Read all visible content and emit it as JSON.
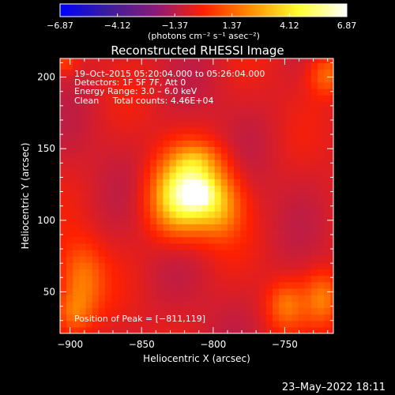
{
  "chart_data": {
    "type": "heatmap",
    "title": "Reconstructed RHESSI Image",
    "xlabel": "Heliocentric X (arcsec)",
    "ylabel": "Heliocentric Y (arcsec)",
    "xlim": [
      -907,
      -716
    ],
    "ylim": [
      21,
      213
    ],
    "x_ticks": [
      -900,
      -850,
      -800,
      -750
    ],
    "x_tick_labels": [
      "−900",
      "−850",
      "−800",
      "−750"
    ],
    "y_ticks": [
      50,
      100,
      150,
      200
    ],
    "y_tick_labels": [
      "50",
      "100",
      "150",
      "200"
    ],
    "colorbar": {
      "range": [
        -6.87,
        6.87
      ],
      "tick_values": [
        -6.87,
        -4.12,
        -1.37,
        1.37,
        4.12,
        6.87
      ],
      "tick_labels": [
        "−6.87",
        "−4.12",
        "−1.37",
        "1.37",
        "4.12",
        "6.87"
      ],
      "units": "(photons cm⁻² s⁻¹ asec⁻²)"
    },
    "annotations": [
      "19–Oct–2015 05:20:04.000 to 05:26:04.000",
      "Detectors: 1F 5F 7F, Att 0",
      "Energy Range: 3.0 – 6.0 keV",
      "Clean     Total counts: 4.46E+04"
    ],
    "peak_label": "Position of Peak = [−811,119]",
    "peak": {
      "x": -811,
      "y": 119,
      "value": 6.87
    },
    "blobs": [
      {
        "x": -811,
        "y": 119,
        "sx": 5,
        "sy": 5,
        "amp": 2.5
      },
      {
        "x": -814,
        "y": 122,
        "sx": 16,
        "sy": 18,
        "amp": 3.2
      },
      {
        "x": -827,
        "y": 111,
        "sx": 13,
        "sy": 17,
        "amp": 1.3
      },
      {
        "x": -795,
        "y": 108,
        "sx": 11,
        "sy": 15,
        "amp": 1.2
      },
      {
        "x": -812,
        "y": 144,
        "sx": 11,
        "sy": 7,
        "amp": 0.6
      },
      {
        "x": -892,
        "y": 58,
        "sx": 11,
        "sy": 18,
        "amp": 1.5
      },
      {
        "x": -899,
        "y": 35,
        "sx": 9,
        "sy": 10,
        "amp": 1.1
      },
      {
        "x": -749,
        "y": 41,
        "sx": 9,
        "sy": 11,
        "amp": 1.2
      },
      {
        "x": -723,
        "y": 45,
        "sx": 9,
        "sy": 13,
        "amp": 1.5
      },
      {
        "x": -720,
        "y": 202,
        "sx": 9,
        "sy": 10,
        "amp": 1.3
      },
      {
        "x": -903,
        "y": 210,
        "sx": 5,
        "sy": 5,
        "amp": 0.7
      }
    ],
    "grid": false
  },
  "footer": {
    "date": "23–May–2022 18:11"
  },
  "colors": {
    "background": "#000000",
    "colormap": [
      "#0000ff",
      "#3a1e9a",
      "#8a1a7a",
      "#ff2000",
      "#ff9000",
      "#ffff30",
      "#ffffff"
    ]
  }
}
